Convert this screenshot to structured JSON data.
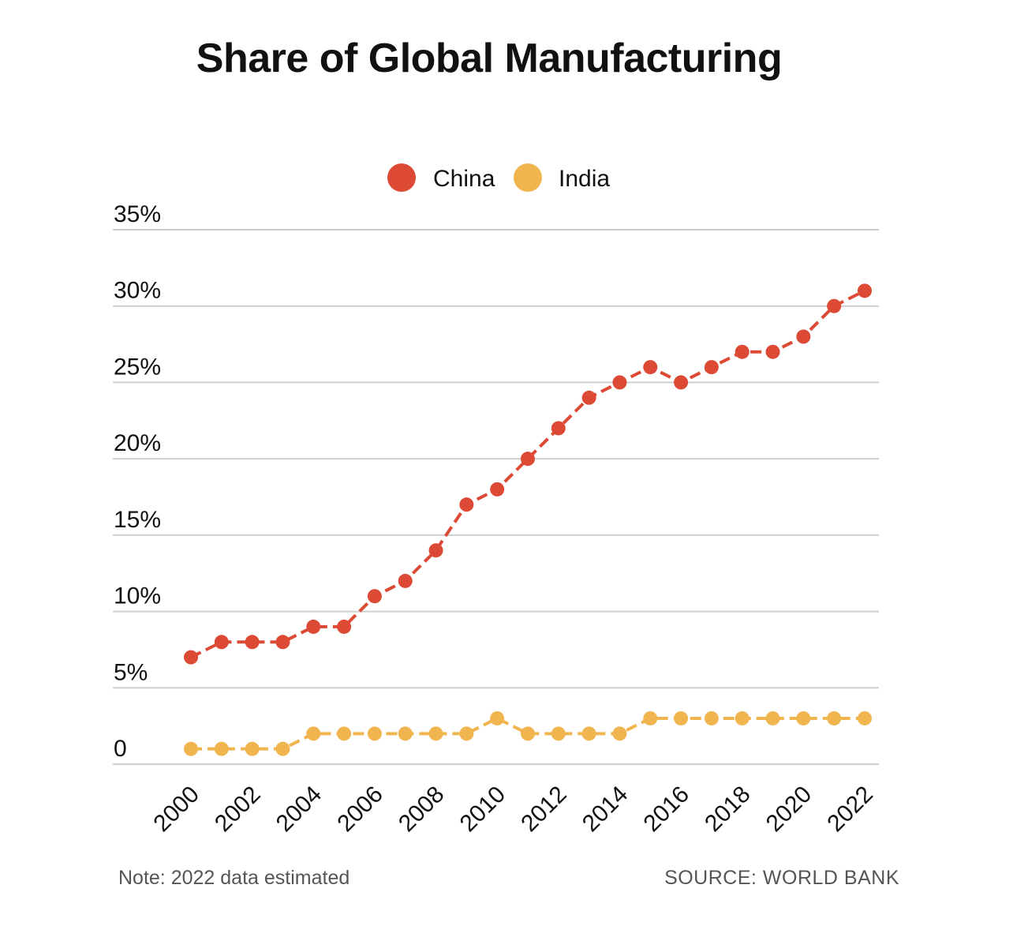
{
  "chart_data": {
    "type": "line",
    "title": "Share of Global Manufacturing",
    "x": [
      2000,
      2001,
      2002,
      2003,
      2004,
      2005,
      2006,
      2007,
      2008,
      2009,
      2010,
      2011,
      2012,
      2013,
      2014,
      2015,
      2016,
      2017,
      2018,
      2019,
      2020,
      2021,
      2022
    ],
    "x_tick_labels": [
      "2000",
      "2002",
      "2004",
      "2006",
      "2008",
      "2010",
      "2012",
      "2014",
      "2016",
      "2018",
      "2020",
      "2022"
    ],
    "x_ticks": [
      2000,
      2002,
      2004,
      2006,
      2008,
      2010,
      2012,
      2014,
      2016,
      2018,
      2020,
      2022
    ],
    "y_ticks": [
      0,
      5,
      10,
      15,
      20,
      25,
      30,
      35
    ],
    "y_tick_labels": [
      "0",
      "5%",
      "10%",
      "15%",
      "20%",
      "25%",
      "30%",
      "35%"
    ],
    "ylim": [
      0,
      35
    ],
    "xlabel": "",
    "ylabel": "",
    "grid": true,
    "legend_position": "top-center",
    "series": [
      {
        "name": "China",
        "color": "#dc4a35",
        "values": [
          7,
          8,
          8,
          8,
          9,
          9,
          11,
          12,
          14,
          17,
          18,
          20,
          22,
          24,
          25,
          26,
          25,
          26,
          27,
          27,
          28,
          30,
          31
        ]
      },
      {
        "name": "India",
        "color": "#f1b54f",
        "values": [
          1,
          1,
          1,
          1,
          2,
          2,
          2,
          2,
          2,
          2,
          3,
          2,
          2,
          2,
          2,
          3,
          3,
          3,
          3,
          3,
          3,
          3,
          3
        ]
      }
    ]
  },
  "footer": {
    "note": "Note: 2022 data estimated",
    "source": "SOURCE: WORLD BANK"
  },
  "colors": {
    "grid": "#cfcfcf",
    "text": "#111111"
  }
}
